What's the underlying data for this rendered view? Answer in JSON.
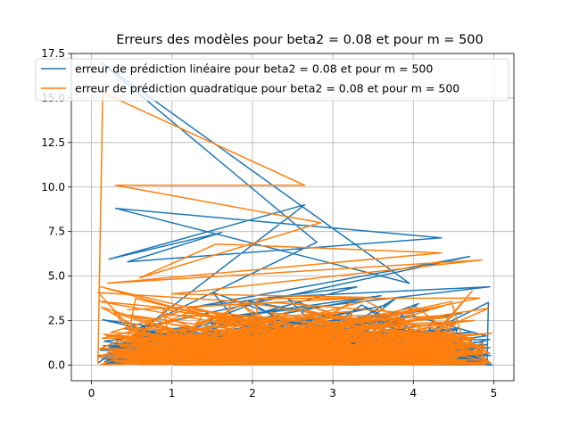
{
  "chart_data": {
    "type": "line",
    "title": "Erreurs des modèles pour beta2 = 0.08 et pour m = 500",
    "xlabel": "",
    "ylabel": "",
    "xlim": [
      -0.25,
      5.25
    ],
    "ylim": [
      -0.88,
      17.5
    ],
    "xticks": [
      0,
      1,
      2,
      3,
      4,
      5
    ],
    "yticks": [
      0.0,
      2.5,
      5.0,
      7.5,
      10.0,
      12.5,
      15.0,
      17.5
    ],
    "xtick_labels": [
      "0",
      "1",
      "2",
      "3",
      "4",
      "5"
    ],
    "ytick_labels": [
      "0.0",
      "2.5",
      "5.0",
      "7.5",
      "10.0",
      "12.5",
      "15.0",
      "17.5"
    ],
    "grid": true,
    "legend_position": "top",
    "series": [
      {
        "name": "erreur de prédiction linéaire pour beta2 = 0.08 et pour m = 500",
        "color": "#1f77b4",
        "points_shown": 500,
        "x": [
          0.08,
          2.65,
          0.22,
          1.62,
          0.45,
          4.35,
          0.3,
          3.95,
          0.12,
          2.8,
          0.6,
          4.7,
          1.2,
          3.3,
          0.9,
          2.2,
          4.95,
          1.5,
          3.6,
          0.4,
          2.9,
          1.8,
          4.2,
          0.7,
          3.0,
          2.5,
          4.6,
          1.1,
          3.8,
          0.2
        ],
        "y": [
          0.1,
          9.0,
          5.95,
          7.45,
          5.8,
          7.15,
          8.8,
          4.6,
          17.0,
          6.9,
          2.1,
          6.1,
          3.2,
          4.4,
          1.5,
          3.8,
          4.4,
          2.6,
          3.9,
          1.2,
          2.7,
          1.9,
          3.1,
          0.8,
          2.2,
          1.6,
          2.9,
          0.5,
          1.8,
          0.3
        ]
      },
      {
        "name": "erreur de prédiction quadratique pour beta2 = 0.08 et pour m = 500",
        "color": "#ff7f0e",
        "points_shown": 500,
        "x": [
          0.08,
          0.14,
          2.65,
          0.3,
          2.85,
          0.6,
          1.55,
          4.35,
          0.2,
          4.85,
          1.0,
          3.5,
          0.45,
          2.3,
          4.0,
          1.3,
          3.2,
          0.8,
          2.7,
          4.5,
          1.7,
          3.9,
          0.35,
          2.1,
          4.75,
          1.45,
          3.35,
          0.95,
          2.55,
          4.1
        ],
        "y": [
          0.1,
          15.3,
          10.1,
          10.1,
          8.0,
          4.9,
          6.8,
          6.3,
          4.6,
          5.9,
          4.0,
          3.8,
          3.1,
          3.5,
          2.9,
          2.4,
          3.0,
          1.8,
          2.6,
          2.7,
          1.5,
          2.2,
          1.1,
          1.9,
          2.5,
          0.9,
          1.7,
          0.6,
          1.3,
          0.4
        ]
      }
    ]
  }
}
